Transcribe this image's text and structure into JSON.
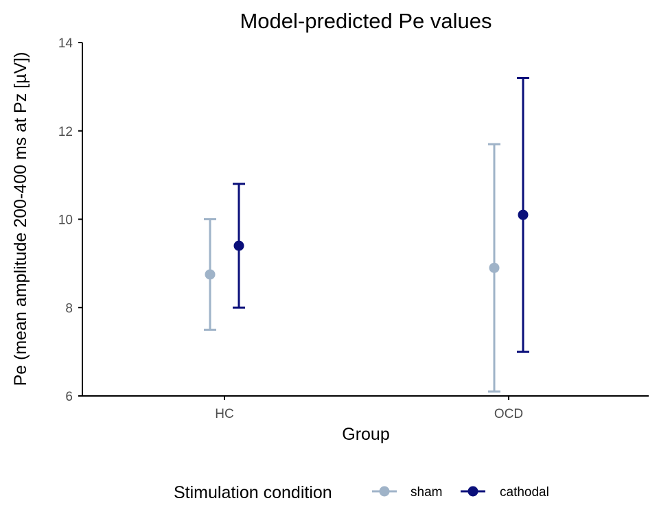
{
  "chart_data": {
    "type": "scatter",
    "title": "Model-predicted Pe values",
    "xlabel": "Group",
    "ylabel": "Pe (mean amplitude 200-400 ms at Pz [µV])",
    "categories": [
      "HC",
      "OCD"
    ],
    "ylim": [
      6,
      14
    ],
    "yticks": [
      6,
      8,
      10,
      12,
      14
    ],
    "grid": false,
    "legend": {
      "title": "Stimulation condition",
      "placement": "bottom"
    },
    "series": [
      {
        "name": "sham",
        "color": "#9FB3C8",
        "values": [
          8.75,
          8.9
        ],
        "lower": [
          7.5,
          6.1
        ],
        "upper": [
          10.0,
          11.7
        ]
      },
      {
        "name": "cathodal",
        "color": "#0A0F7A",
        "values": [
          9.4,
          10.1
        ],
        "lower": [
          8.0,
          7.0
        ],
        "upper": [
          10.8,
          13.2
        ]
      }
    ]
  }
}
